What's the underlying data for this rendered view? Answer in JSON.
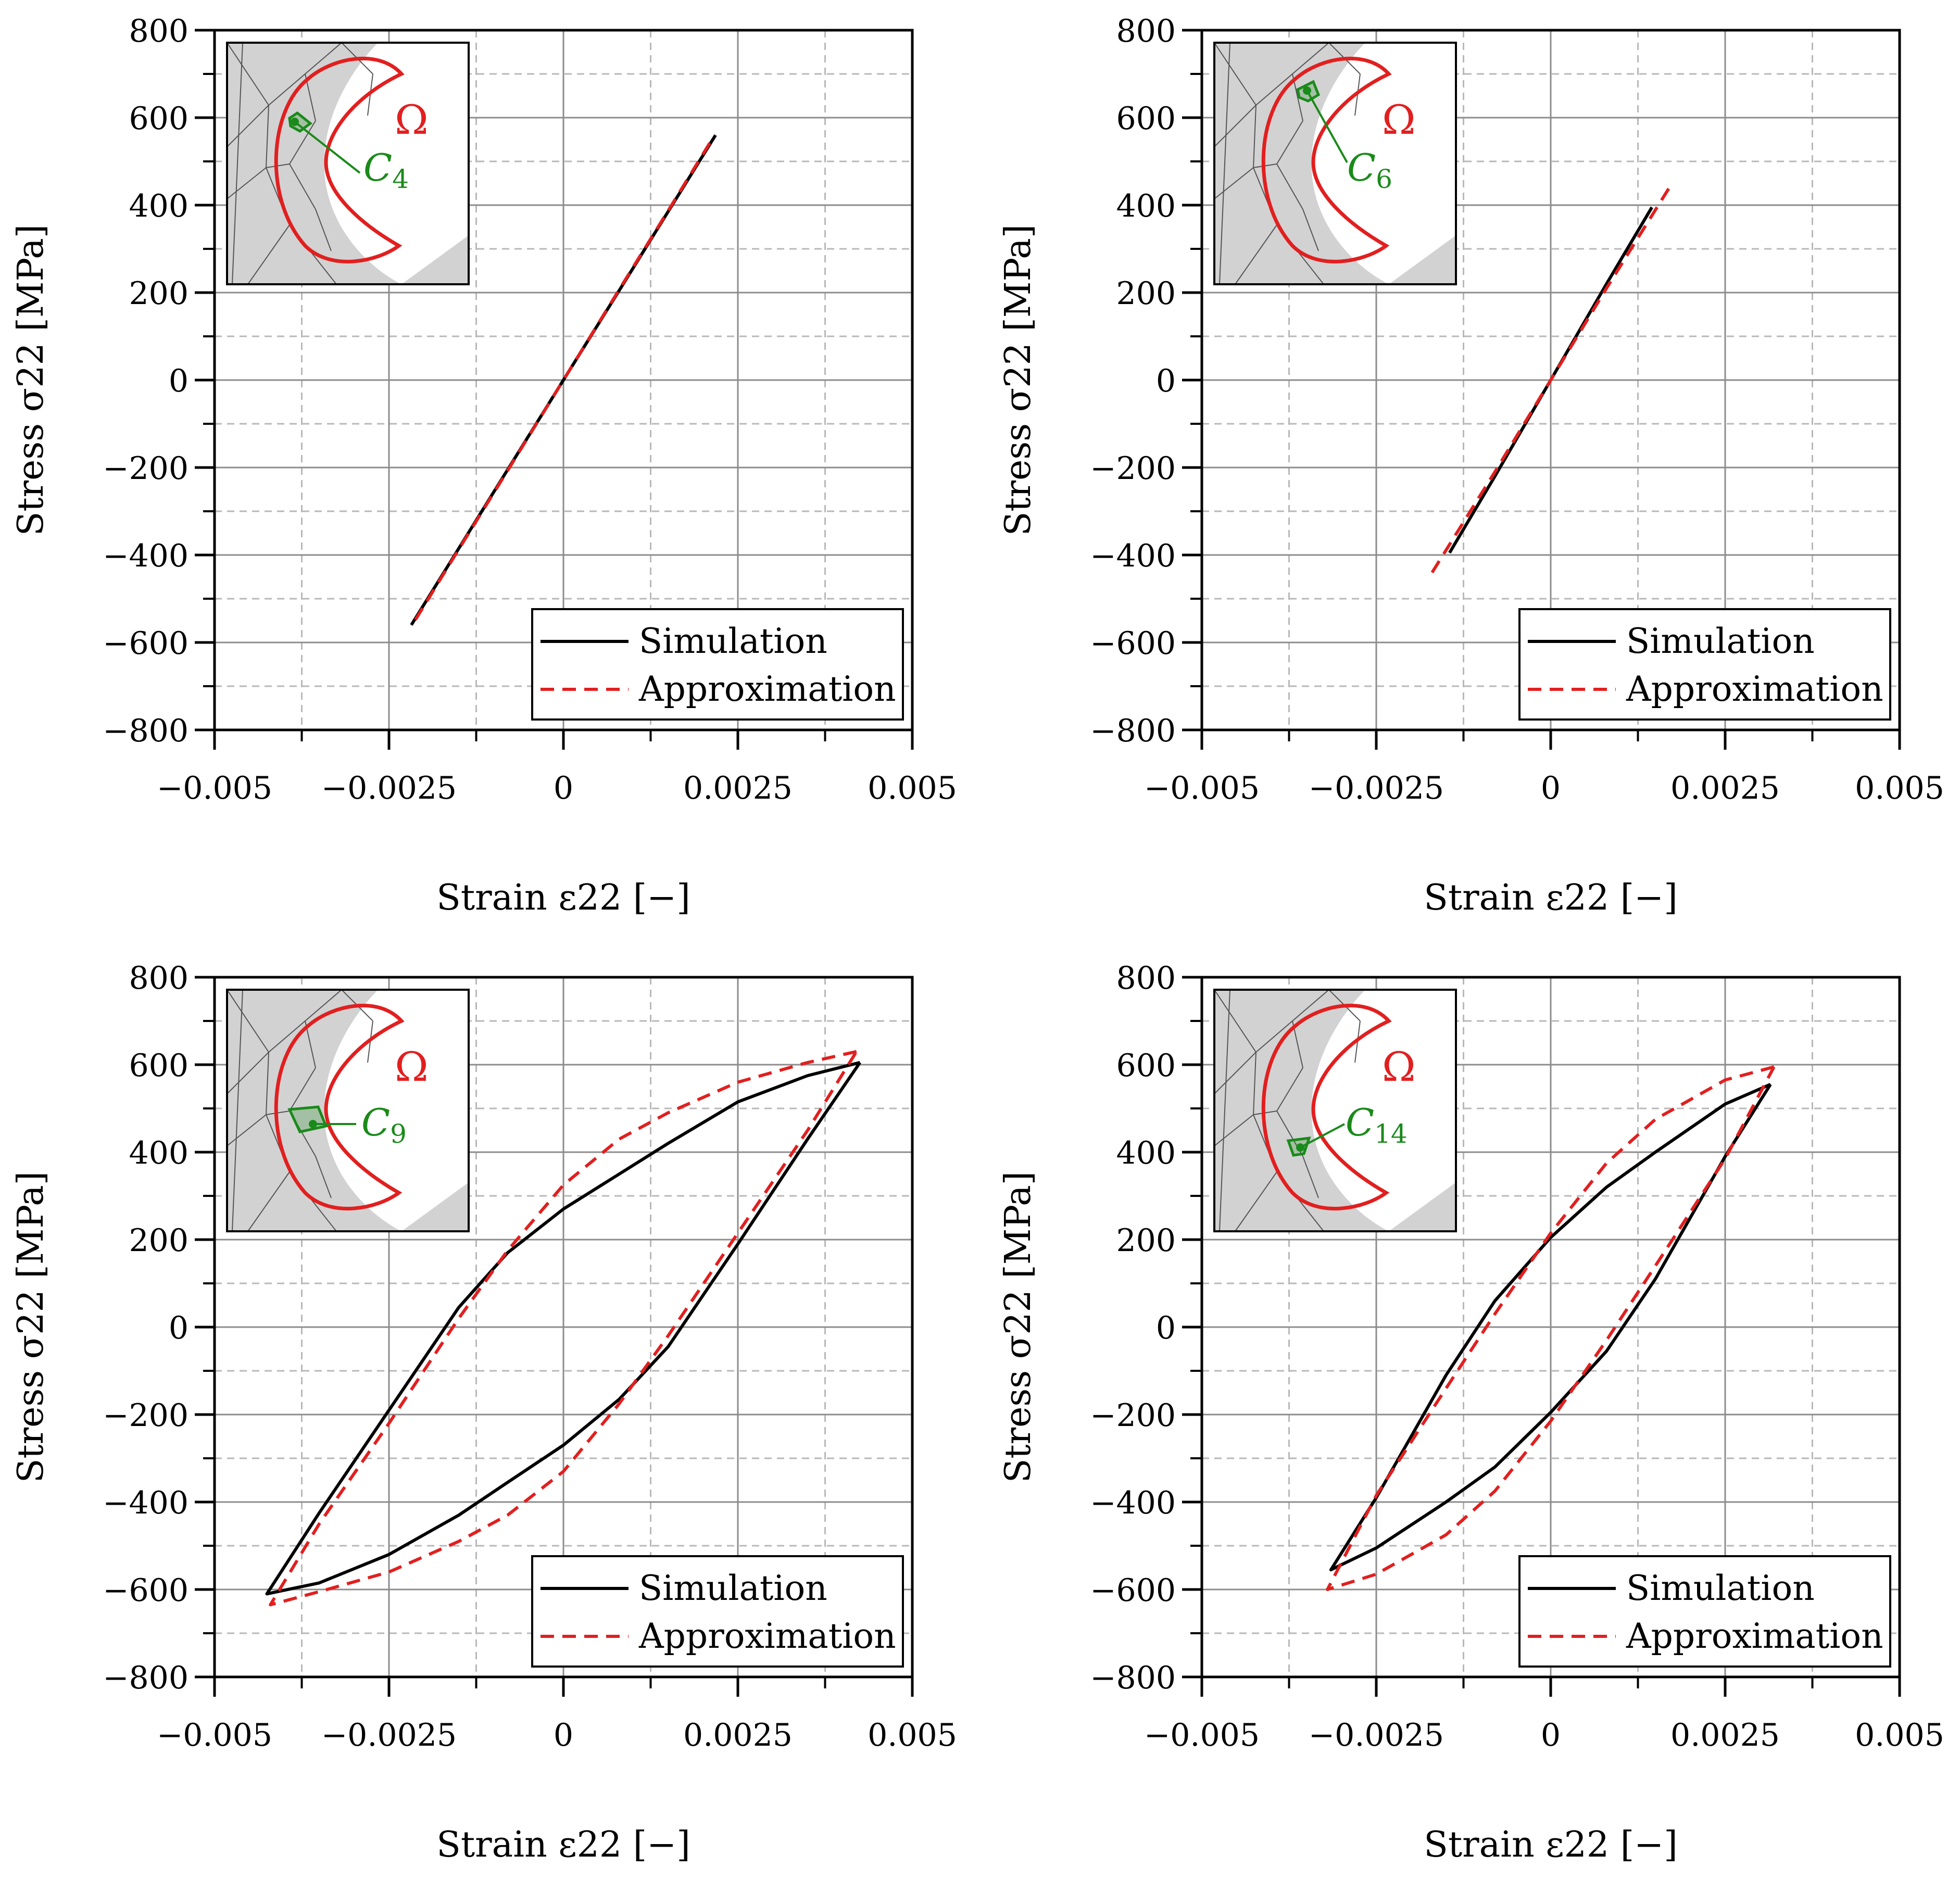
{
  "colors": {
    "simulation": "#000000",
    "approximation": "#e21f1f",
    "omega": "#e21f1f",
    "cell": "#1a8a1a",
    "grid_major": "#8c8c8c",
    "grid_minor": "#b8b8b8",
    "mesh_fill": "#d2d2d2"
  },
  "chart_data": [
    {
      "type": "line",
      "xlabel": "Strain ε22 [−]",
      "ylabel": "Stress σ22 [MPa]",
      "xlim": [
        -0.005,
        0.005
      ],
      "ylim": [
        -800,
        800
      ],
      "xticks": [
        -0.005,
        -0.0025,
        0,
        0.0025,
        0.005
      ],
      "xtick_labels": [
        "−0.005",
        "−0.0025",
        "0",
        "0.0025",
        "0.005"
      ],
      "yticks": [
        800,
        600,
        400,
        200,
        0,
        -200,
        -400,
        -600,
        -800
      ],
      "ytick_labels": [
        "800",
        "600",
        "400",
        "200",
        "0",
        "−200",
        "−400",
        "−600",
        "−800"
      ],
      "grid": true,
      "legend_position": "bottom-right",
      "inset": {
        "region_label": "Ω",
        "cell_label": "C4",
        "cell_symbol": "C",
        "cell_index": "4",
        "cell_location": "upper-left of hole"
      },
      "series": [
        {
          "name": "Simulation",
          "style": "solid",
          "x": [
            -0.00218,
            -0.0015,
            -0.0008,
            0.0,
            0.0008,
            0.0015,
            0.00218
          ],
          "y": [
            -560,
            -385,
            -205,
            0,
            205,
            385,
            560
          ]
        },
        {
          "name": "Approximation",
          "style": "dashed",
          "x": [
            -0.00212,
            -0.0015,
            -0.0008,
            0.0,
            0.0008,
            0.0015,
            0.00212
          ],
          "y": [
            -548,
            -387,
            -207,
            0,
            207,
            387,
            548
          ]
        }
      ]
    },
    {
      "type": "line",
      "xlabel": "Strain ε22 [−]",
      "ylabel": "Stress σ22 [MPa]",
      "xlim": [
        -0.005,
        0.005
      ],
      "ylim": [
        -800,
        800
      ],
      "xticks": [
        -0.005,
        -0.0025,
        0,
        0.0025,
        0.005
      ],
      "xtick_labels": [
        "−0.005",
        "−0.0025",
        "0",
        "0.0025",
        "0.005"
      ],
      "yticks": [
        800,
        600,
        400,
        200,
        0,
        -200,
        -400,
        -600,
        -800
      ],
      "ytick_labels": [
        "800",
        "600",
        "400",
        "200",
        "0",
        "−200",
        "−400",
        "−600",
        "−800"
      ],
      "grid": true,
      "legend_position": "bottom-right",
      "inset": {
        "region_label": "Ω",
        "cell_label": "C6",
        "cell_symbol": "C",
        "cell_index": "6",
        "cell_location": "top of hole"
      },
      "series": [
        {
          "name": "Simulation",
          "style": "solid",
          "x": [
            -0.00145,
            -0.0008,
            0.0,
            0.0008,
            0.00145
          ],
          "y": [
            -395,
            -220,
            0,
            220,
            395
          ]
        },
        {
          "name": "Approximation",
          "style": "dashed",
          "x": [
            -0.0017,
            -0.0008,
            0.0,
            0.0008,
            0.0017
          ],
          "y": [
            -440,
            -210,
            0,
            210,
            440
          ]
        }
      ]
    },
    {
      "type": "line",
      "xlabel": "Strain ε22 [−]",
      "ylabel": "Stress σ22 [MPa]",
      "xlim": [
        -0.005,
        0.005
      ],
      "ylim": [
        -800,
        800
      ],
      "xticks": [
        -0.005,
        -0.0025,
        0,
        0.0025,
        0.005
      ],
      "xtick_labels": [
        "−0.005",
        "−0.0025",
        "0",
        "0.0025",
        "0.005"
      ],
      "yticks": [
        800,
        600,
        400,
        200,
        0,
        -200,
        -400,
        -600,
        -800
      ],
      "ytick_labels": [
        "800",
        "600",
        "400",
        "200",
        "0",
        "−200",
        "−400",
        "−600",
        "−800"
      ],
      "grid": true,
      "legend_position": "bottom-right",
      "inset": {
        "region_label": "Ω",
        "cell_label": "C9",
        "cell_symbol": "C",
        "cell_index": "9",
        "cell_location": "left of hole"
      },
      "series": [
        {
          "name": "Simulation",
          "style": "solid",
          "x": [
            0.00425,
            0.0035,
            0.0025,
            0.0015,
            0.0008,
            0.0,
            -0.0008,
            -0.0015,
            -0.0025,
            -0.0035,
            -0.00425,
            -0.0035,
            -0.0025,
            -0.0015,
            -0.0008,
            0.0,
            0.0008,
            0.0015,
            0.0025,
            0.0035,
            0.00425
          ],
          "y": [
            605,
            575,
            515,
            420,
            350,
            270,
            170,
            45,
            -190,
            -425,
            -610,
            -585,
            -520,
            -430,
            -355,
            -270,
            -165,
            -45,
            190,
            430,
            605
          ]
        },
        {
          "name": "Approximation",
          "style": "dashed",
          "x": [
            0.0042,
            0.0035,
            0.0025,
            0.0015,
            0.0008,
            0.0,
            -0.0008,
            -0.0015,
            -0.0025,
            -0.0035,
            -0.0042,
            -0.0035,
            -0.0025,
            -0.0015,
            -0.0008,
            0.0,
            0.0008,
            0.0015,
            0.0025,
            0.0035,
            0.0042
          ],
          "y": [
            630,
            605,
            560,
            490,
            430,
            325,
            175,
            20,
            -220,
            -450,
            -635,
            -605,
            -560,
            -490,
            -430,
            -330,
            -175,
            -20,
            215,
            450,
            630
          ]
        }
      ]
    },
    {
      "type": "line",
      "xlabel": "Strain ε22 [−]",
      "ylabel": "Stress σ22 [MPa]",
      "xlim": [
        -0.005,
        0.005
      ],
      "ylim": [
        -800,
        800
      ],
      "xticks": [
        -0.005,
        -0.0025,
        0,
        0.0025,
        0.005
      ],
      "xtick_labels": [
        "−0.005",
        "−0.0025",
        "0",
        "0.0025",
        "0.005"
      ],
      "yticks": [
        800,
        600,
        400,
        200,
        0,
        -200,
        -400,
        -600,
        -800
      ],
      "ytick_labels": [
        "800",
        "600",
        "400",
        "200",
        "0",
        "−200",
        "−400",
        "−600",
        "−800"
      ],
      "grid": true,
      "legend_position": "bottom-right",
      "inset": {
        "region_label": "Ω",
        "cell_label": "C14",
        "cell_symbol": "C",
        "cell_index": "14",
        "cell_location": "lower-left of hole"
      },
      "series": [
        {
          "name": "Simulation",
          "style": "solid",
          "x": [
            0.00315,
            0.0025,
            0.0015,
            0.0008,
            0.0,
            -0.0008,
            -0.0015,
            -0.0025,
            -0.00315,
            -0.0025,
            -0.0015,
            -0.0008,
            0.0,
            0.0008,
            0.0015,
            0.0025,
            0.00315
          ],
          "y": [
            555,
            510,
            400,
            320,
            205,
            60,
            -110,
            -390,
            -555,
            -505,
            -400,
            -320,
            -195,
            -55,
            110,
            390,
            555
          ]
        },
        {
          "name": "Approximation",
          "style": "dashed",
          "x": [
            0.0032,
            0.0025,
            0.0015,
            0.0008,
            0.0,
            -0.0008,
            -0.0015,
            -0.0025,
            -0.0032,
            -0.0025,
            -0.0015,
            -0.0008,
            0.0,
            0.0008,
            0.0015,
            0.0025,
            0.0032
          ],
          "y": [
            595,
            565,
            475,
            375,
            215,
            30,
            -140,
            -385,
            -600,
            -565,
            -475,
            -375,
            -215,
            -30,
            140,
            385,
            595
          ]
        }
      ]
    }
  ]
}
